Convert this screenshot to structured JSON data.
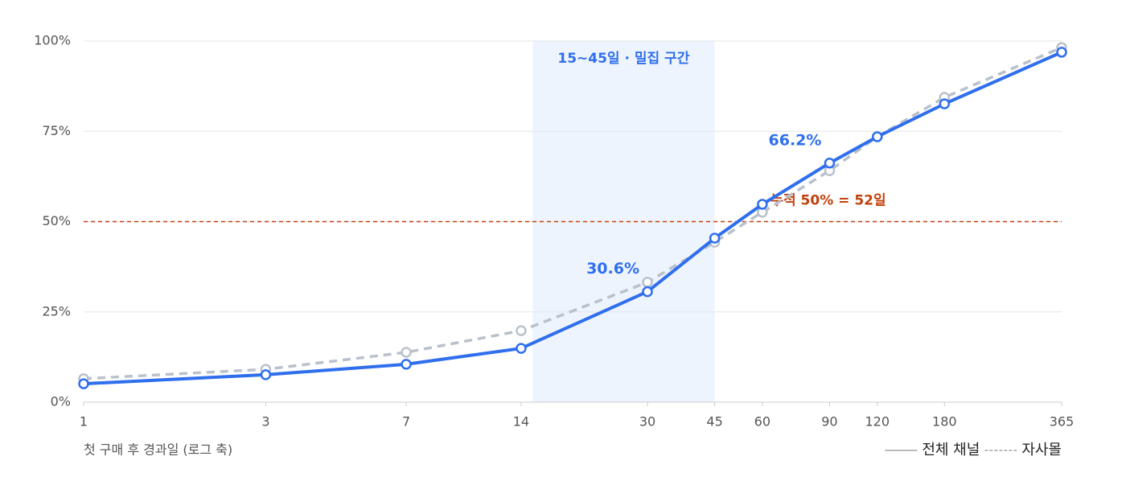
{
  "chart_data": {
    "type": "line",
    "x_label": "첫 구매 후 경과일 (로그 축)",
    "x": [
      1,
      3,
      7,
      14,
      30,
      45,
      60,
      90,
      120,
      180,
      365
    ],
    "xlim": [
      1,
      365
    ],
    "xscale": "log",
    "xticks": [
      1,
      3,
      7,
      14,
      30,
      45,
      60,
      90,
      120,
      180,
      365
    ],
    "ylim": [
      0,
      100
    ],
    "yticks": [
      {
        "value": 0,
        "label": "0%"
      },
      {
        "value": 25,
        "label": "25%"
      },
      {
        "value": 50,
        "label": "50%"
      },
      {
        "value": 75,
        "label": "75%"
      },
      {
        "value": 100,
        "label": "100%"
      }
    ],
    "grid": true,
    "legend": "bottom-right",
    "band": {
      "x": [
        15,
        45
      ],
      "label": "15~45일 · 밀집 구간",
      "color": "#eef4fd",
      "label_color": "#2f6fed"
    },
    "reference_line": {
      "y": 50,
      "label": "누적 50% = 52일",
      "color": "#c2410c"
    },
    "series": [
      {
        "name": "자사몰",
        "color": "#b9c1cc",
        "dashed": true,
        "values": [
          6.5,
          9.1,
          13.8,
          19.8,
          33.2,
          44.3,
          52.6,
          64.1,
          73.5,
          84.4,
          98.2
        ]
      },
      {
        "name": "전체 채널",
        "color": "#2f6fed",
        "dashed": false,
        "values": [
          5.1,
          7.6,
          10.5,
          14.9,
          30.6,
          45.4,
          54.8,
          66.2,
          73.5,
          82.6,
          96.9
        ],
        "value_labels": [
          null,
          null,
          null,
          null,
          "30.6%",
          null,
          null,
          "66.2%",
          null,
          null,
          null
        ]
      }
    ]
  }
}
